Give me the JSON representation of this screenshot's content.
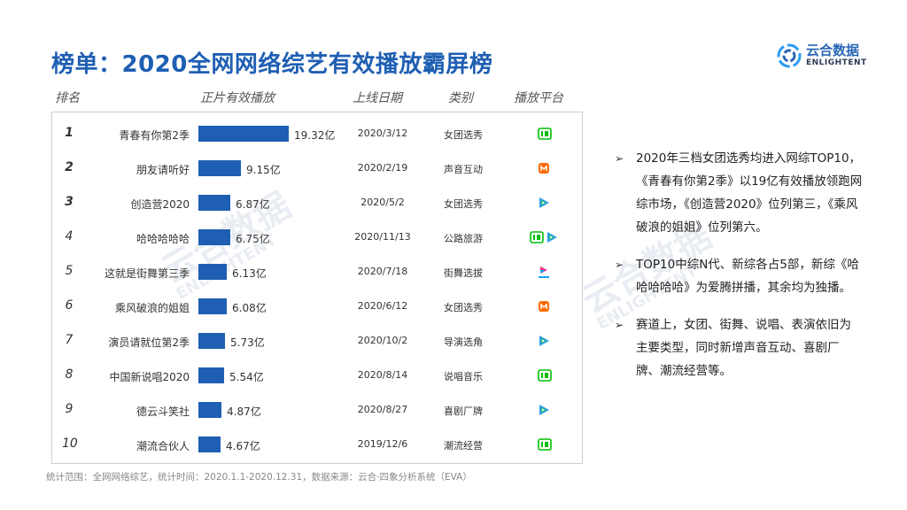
{
  "title": "榜单：2020全网网络综艺有效播放霸屏榜",
  "logo": {
    "cn": "云合数据",
    "en": "ENLIGHTENT"
  },
  "watermark": {
    "cn": "云合数据",
    "en": "ENLIGHTENT"
  },
  "headers": {
    "rank": "排名",
    "plays": "正片有效播放",
    "date": "上线日期",
    "category": "类别",
    "platform": "播放平台"
  },
  "chart_data": {
    "type": "bar",
    "unit": "亿",
    "categories": [
      "青春有你第2季",
      "朋友请听好",
      "创造营2020",
      "哈哈哈哈哈",
      "这就是街舞第三季",
      "乘风破浪的姐姐",
      "演员请就位第2季",
      "中国新说唱2020",
      "德云斗笑社",
      "潮流合伙人"
    ],
    "values": [
      19.32,
      9.15,
      6.87,
      6.75,
      6.13,
      6.08,
      5.73,
      5.54,
      4.87,
      4.67
    ],
    "value_labels": [
      "19.32亿",
      "9.15亿",
      "6.87亿",
      "6.75亿",
      "6.13亿",
      "6.08亿",
      "5.73亿",
      "5.54亿",
      "4.87亿",
      "4.67亿"
    ],
    "colors": {
      "bar": "#1f5fb3"
    }
  },
  "rows": [
    {
      "rank": "1",
      "date": "2020/3/12",
      "category": "女团选秀",
      "platforms": [
        "iqiyi"
      ]
    },
    {
      "rank": "2",
      "date": "2020/2/19",
      "category": "声音互动",
      "platforms": [
        "mango"
      ]
    },
    {
      "rank": "3",
      "date": "2020/5/2",
      "category": "女团选秀",
      "platforms": [
        "tencent"
      ]
    },
    {
      "rank": "4",
      "date": "2020/11/13",
      "category": "公路旅游",
      "platforms": [
        "iqiyi",
        "tencent"
      ]
    },
    {
      "rank": "5",
      "date": "2020/7/18",
      "category": "街舞选拔",
      "platforms": [
        "youku"
      ]
    },
    {
      "rank": "6",
      "date": "2020/6/12",
      "category": "女团选秀",
      "platforms": [
        "mango"
      ]
    },
    {
      "rank": "7",
      "date": "2020/10/2",
      "category": "导演选角",
      "platforms": [
        "tencent"
      ]
    },
    {
      "rank": "8",
      "date": "2020/8/14",
      "category": "说唱音乐",
      "platforms": [
        "iqiyi"
      ]
    },
    {
      "rank": "9",
      "date": "2020/8/27",
      "category": "喜剧厂牌",
      "platforms": [
        "tencent"
      ]
    },
    {
      "rank": "10",
      "date": "2019/12/6",
      "category": "潮流经营",
      "platforms": [
        "iqiyi"
      ]
    }
  ],
  "bullets": [
    "2020年三档女团选秀均进入网综TOP10，《青春有你第2季》以19亿有效播放领跑网综市场，《创造营2020》位列第三，《乘风破浪的姐姐》位列第六。",
    "TOP10中综N代、新综各占5部，新综《哈哈哈哈哈》为爱腾拼播，其余均为独播。",
    "赛道上，女团、街舞、说唱、表演依旧为主要类型，同时新增声音互动、喜剧厂牌、潮流经营等。"
  ],
  "footnote": "统计范围：全网网络综艺，统计时间：2020.1.1-2020.12.31，数据来源：云合·四象分析系统（EVA）",
  "colors": {
    "title": "#1f5fb3",
    "bar": "#1f5fb3",
    "iqiyi": "#00be06",
    "tencent_blue": "#2d9cf0",
    "tencent_green": "#22c35e",
    "tencent_orange": "#ff8a00",
    "mango": "#ff6a00",
    "youku_pink": "#ff2d7a",
    "youku_blue": "#1aa3ff"
  }
}
